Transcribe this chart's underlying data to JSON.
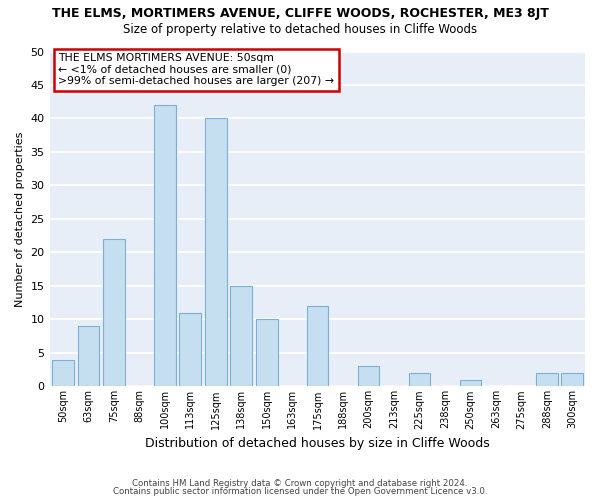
{
  "title": "THE ELMS, MORTIMERS AVENUE, CLIFFE WOODS, ROCHESTER, ME3 8JT",
  "subtitle": "Size of property relative to detached houses in Cliffe Woods",
  "xlabel": "Distribution of detached houses by size in Cliffe Woods",
  "ylabel": "Number of detached properties",
  "bar_color": "#c5dff0",
  "bar_edge_color": "#7bafd4",
  "categories": [
    "50sqm",
    "63sqm",
    "75sqm",
    "88sqm",
    "100sqm",
    "113sqm",
    "125sqm",
    "138sqm",
    "150sqm",
    "163sqm",
    "175sqm",
    "188sqm",
    "200sqm",
    "213sqm",
    "225sqm",
    "238sqm",
    "250sqm",
    "263sqm",
    "275sqm",
    "288sqm",
    "300sqm"
  ],
  "values": [
    4,
    9,
    22,
    0,
    42,
    11,
    40,
    15,
    10,
    0,
    12,
    0,
    3,
    0,
    2,
    0,
    1,
    0,
    0,
    2,
    2
  ],
  "ylim": [
    0,
    50
  ],
  "yticks": [
    0,
    5,
    10,
    15,
    20,
    25,
    30,
    35,
    40,
    45,
    50
  ],
  "annotation_title": "THE ELMS MORTIMERS AVENUE: 50sqm",
  "annotation_line1": "← <1% of detached houses are smaller (0)",
  "annotation_line2": ">99% of semi-detached houses are larger (207) →",
  "annotation_box_color": "#ffffff",
  "annotation_box_edge": "#cc0000",
  "footer1": "Contains HM Land Registry data © Crown copyright and database right 2024.",
  "footer2": "Contains public sector information licensed under the Open Government Licence v3.0.",
  "background_color": "#e8eef8",
  "plot_bg_color": "#e8eef8",
  "grid_color": "#ffffff"
}
